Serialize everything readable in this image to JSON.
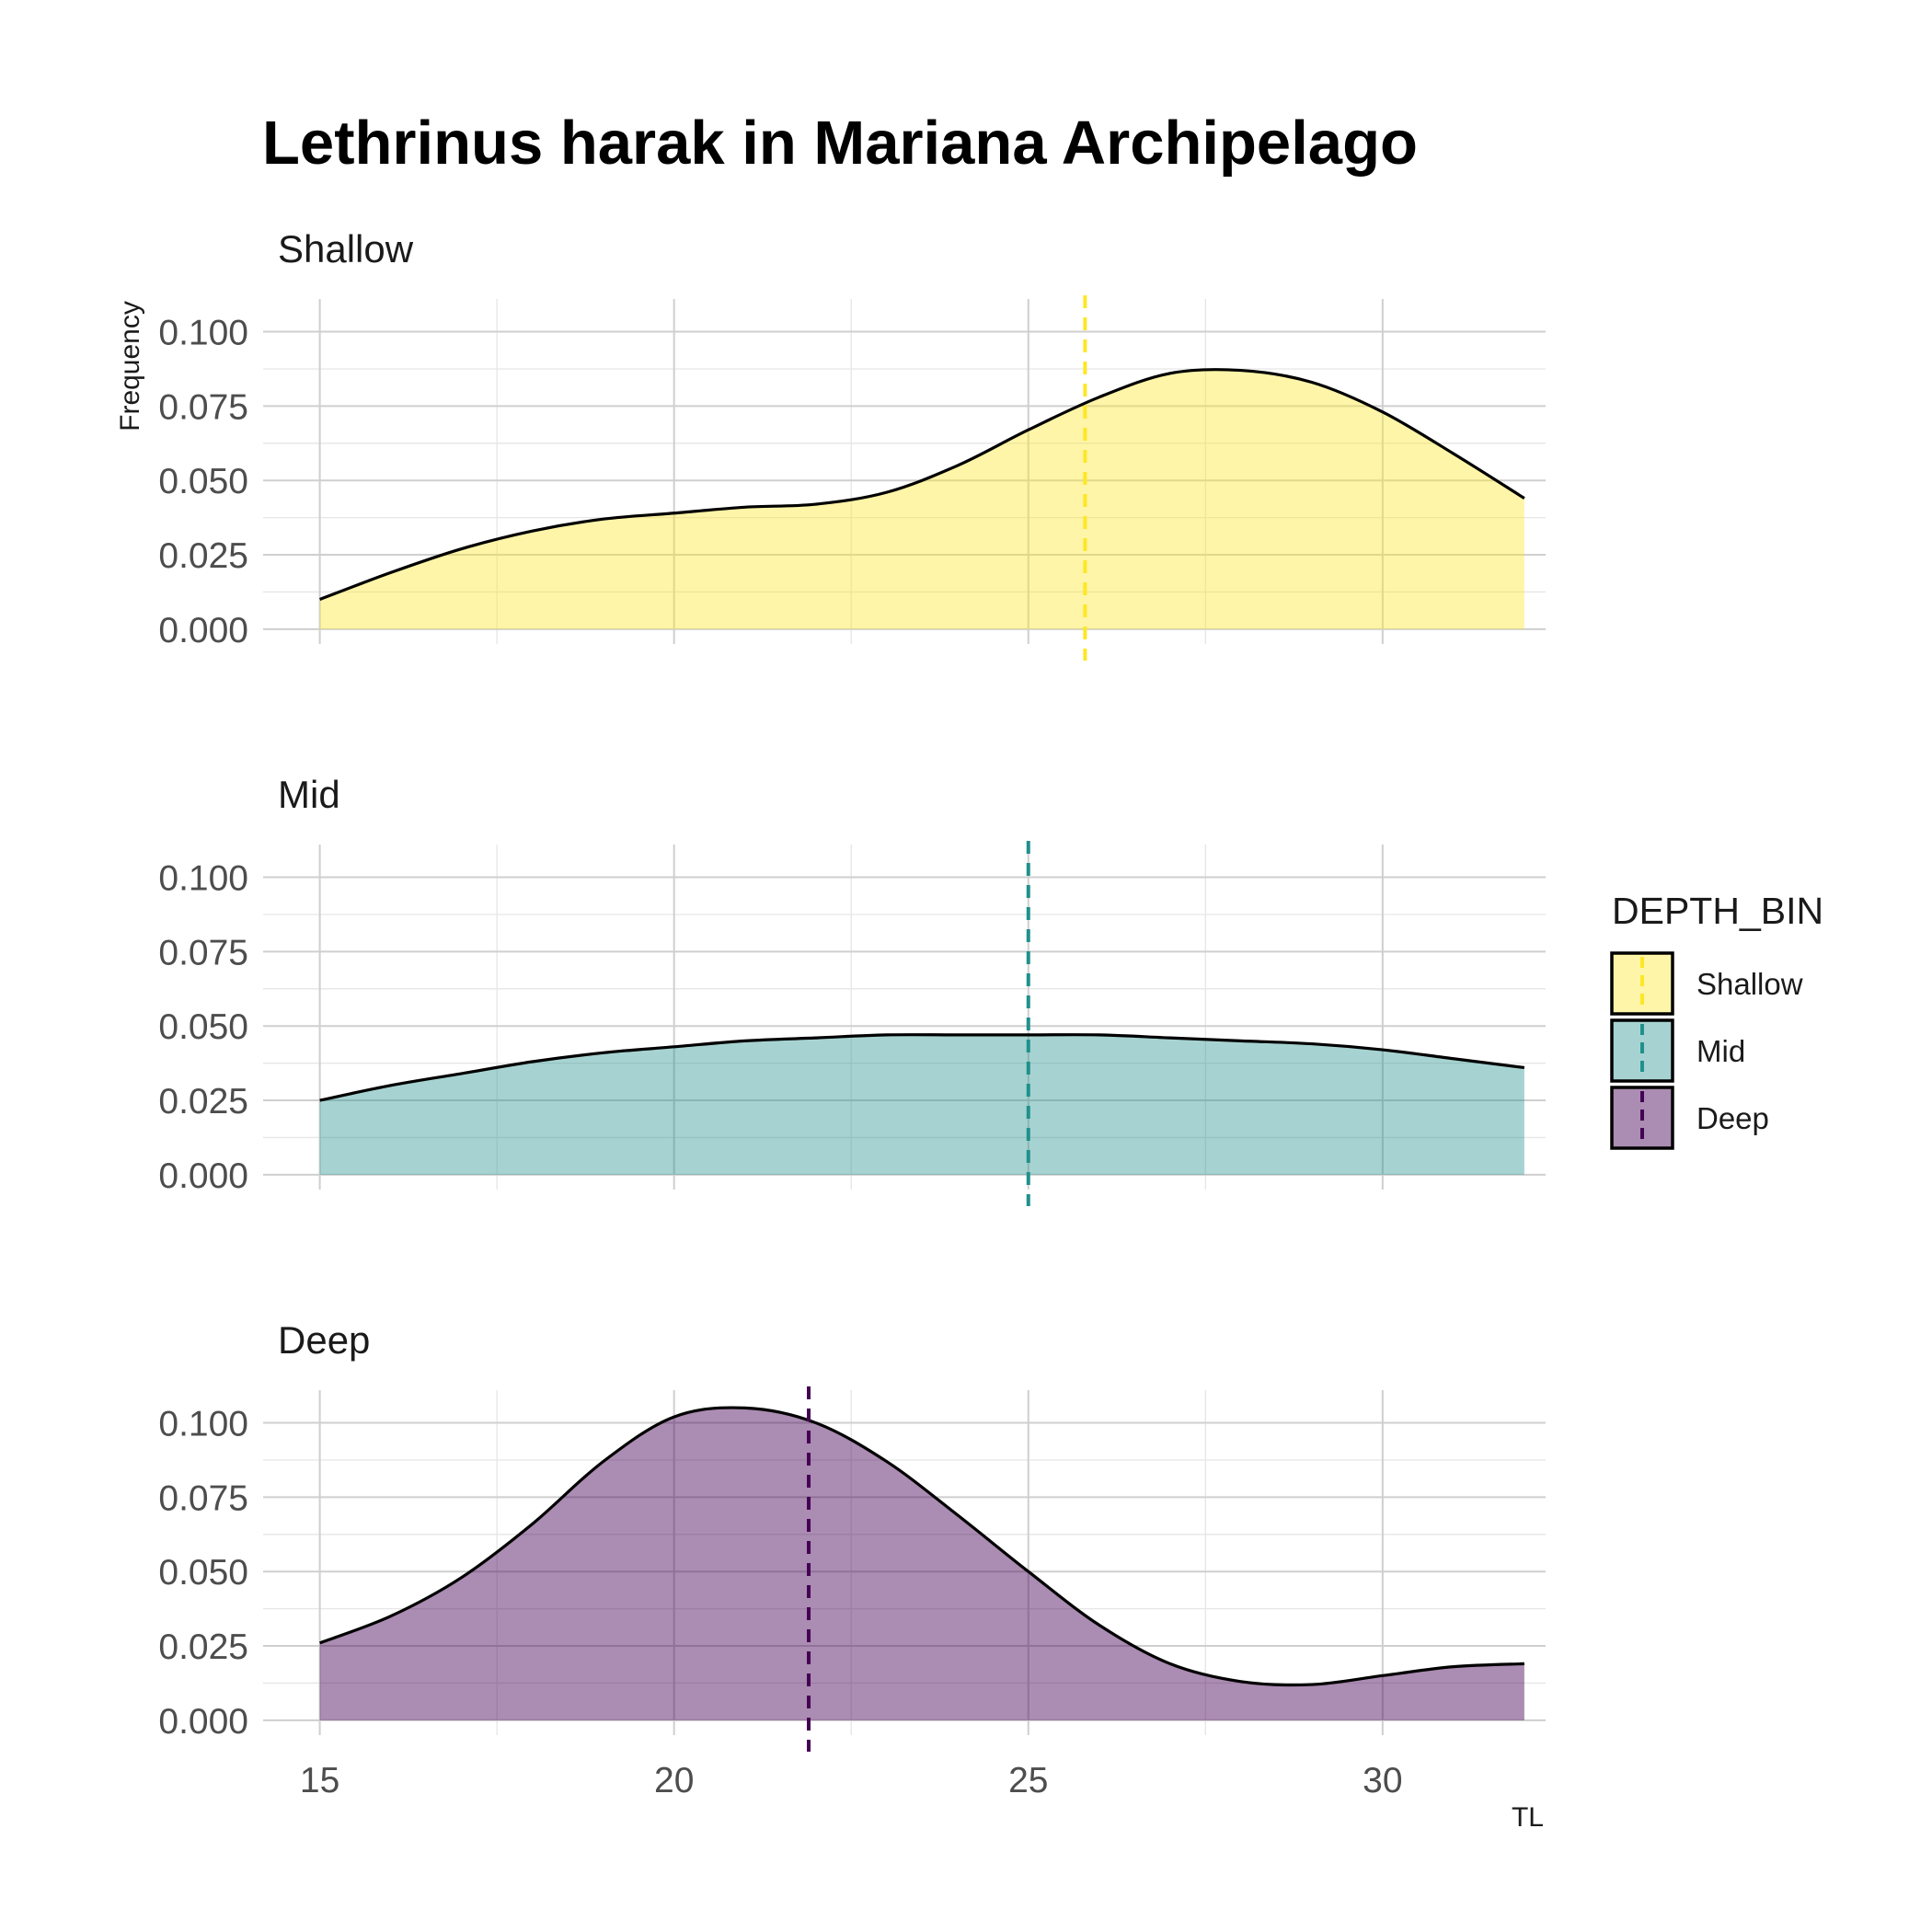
{
  "chart_data": {
    "type": "area",
    "title": "Lethrinus harak in Mariana Archipelago",
    "xlabel": "TL",
    "ylabel": "Frequency",
    "xlim": [
      14.2,
      32.3
    ],
    "ylim": [
      -0.005,
      0.111
    ],
    "x_ticks": [
      "15",
      "20",
      "25",
      "30"
    ],
    "y_ticks": [
      "0.000",
      "0.025",
      "0.050",
      "0.075",
      "0.100"
    ],
    "grid": true,
    "legend": {
      "title": "DEPTH_BIN",
      "position": "right",
      "entries": [
        "Shallow",
        "Mid",
        "Deep"
      ]
    },
    "panels": [
      {
        "label": "Shallow",
        "color": "#FDE725",
        "fill_opacity": 0.4,
        "mean_line_x": 25.8,
        "x": [
          15,
          16,
          17,
          18,
          19,
          20,
          21,
          22,
          23,
          24,
          25,
          26,
          27,
          28,
          29,
          30,
          31,
          32
        ],
        "y": [
          0.01,
          0.019,
          0.027,
          0.033,
          0.037,
          0.039,
          0.041,
          0.042,
          0.046,
          0.055,
          0.067,
          0.078,
          0.086,
          0.087,
          0.083,
          0.073,
          0.059,
          0.044
        ]
      },
      {
        "label": "Mid",
        "color": "#21908C",
        "fill_opacity": 0.4,
        "mean_line_x": 25.0,
        "x": [
          15,
          16,
          17,
          18,
          19,
          20,
          21,
          22,
          23,
          24,
          25,
          26,
          27,
          28,
          29,
          30,
          31,
          32
        ],
        "y": [
          0.025,
          0.03,
          0.034,
          0.038,
          0.041,
          0.043,
          0.045,
          0.046,
          0.047,
          0.047,
          0.047,
          0.047,
          0.046,
          0.045,
          0.044,
          0.042,
          0.039,
          0.036
        ]
      },
      {
        "label": "Deep",
        "color": "#440154",
        "fill_opacity": 0.45,
        "mean_line_x": 21.9,
        "x": [
          15,
          16,
          17,
          18,
          19,
          20,
          21,
          22,
          23,
          24,
          25,
          26,
          27,
          28,
          29,
          30,
          31,
          32
        ],
        "y": [
          0.026,
          0.035,
          0.048,
          0.066,
          0.087,
          0.102,
          0.105,
          0.1,
          0.087,
          0.069,
          0.05,
          0.032,
          0.019,
          0.013,
          0.012,
          0.015,
          0.018,
          0.019
        ]
      }
    ]
  }
}
